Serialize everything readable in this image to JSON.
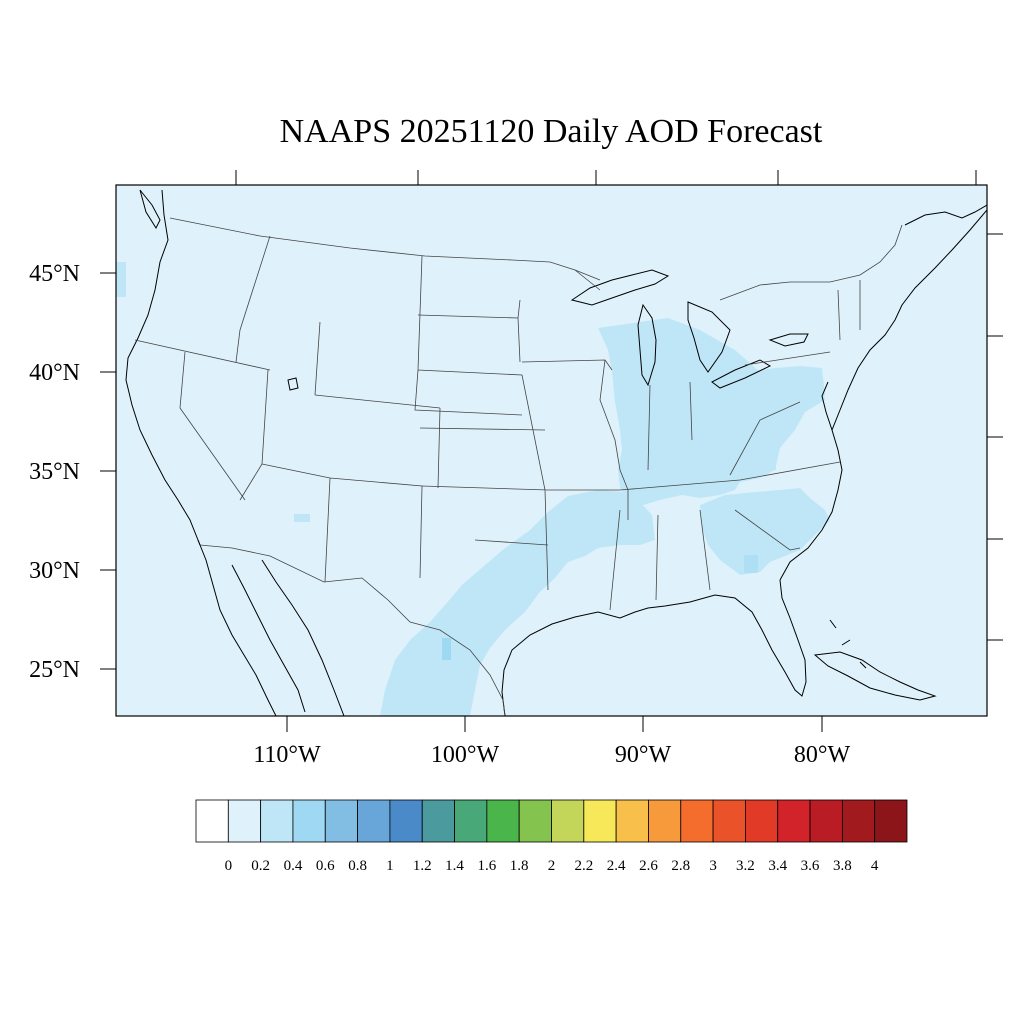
{
  "title": "NAAPS 20251120 Daily AOD Forecast",
  "map": {
    "lon_range": [
      -119.5,
      -71.5
    ],
    "lat_range": [
      22.5,
      49.3
    ],
    "lat_labels": [
      "45°N",
      "40°N",
      "35°N",
      "30°N",
      "25°N"
    ],
    "lat_values": [
      45,
      40,
      35,
      30,
      25
    ],
    "lon_labels": [
      "110°W",
      "100°W",
      "90°W",
      "80°W"
    ],
    "lon_values": [
      -110,
      -100,
      -90,
      -80
    ],
    "background_level_color": "#dff2fb",
    "frame_color": "#000000"
  },
  "colorbar": {
    "labels": [
      "0",
      "0.2",
      "0.4",
      "0.6",
      "0.8",
      "1",
      "1.2",
      "1.4",
      "1.6",
      "1.8",
      "2",
      "2.2",
      "2.4",
      "2.6",
      "2.8",
      "3",
      "3.2",
      "3.4",
      "3.6",
      "3.8",
      "4"
    ],
    "colors": [
      "#ffffff",
      "#dff2fb",
      "#bfe6f7",
      "#9fd8f3",
      "#82bde4",
      "#68a6d9",
      "#4a8ac8",
      "#4a9a9e",
      "#48a878",
      "#4ab54a",
      "#85c34f",
      "#c3d65a",
      "#f7e85a",
      "#f8c04a",
      "#f79a3c",
      "#f46d2c",
      "#ea5229",
      "#e13a27",
      "#d2232a",
      "#b91c24",
      "#a01a1e",
      "#8c1519"
    ]
  },
  "aod_regions": [
    {
      "name": "midwest-ohio-valley-plume",
      "level": "0.2-0.4",
      "color": "#bfe6f7"
    },
    {
      "name": "texas-arklatex-plume",
      "level": "0.2-0.4",
      "color": "#bfe6f7"
    },
    {
      "name": "southeast-plume",
      "level": "0.2-0.4",
      "color": "#bfe6f7"
    },
    {
      "name": "pennsylvania-patch",
      "level": "0.2-0.4",
      "color": "#bfe6f7"
    },
    {
      "name": "south-texas-spot",
      "level": "0.4-0.6",
      "color": "#9fd8f3"
    }
  ]
}
